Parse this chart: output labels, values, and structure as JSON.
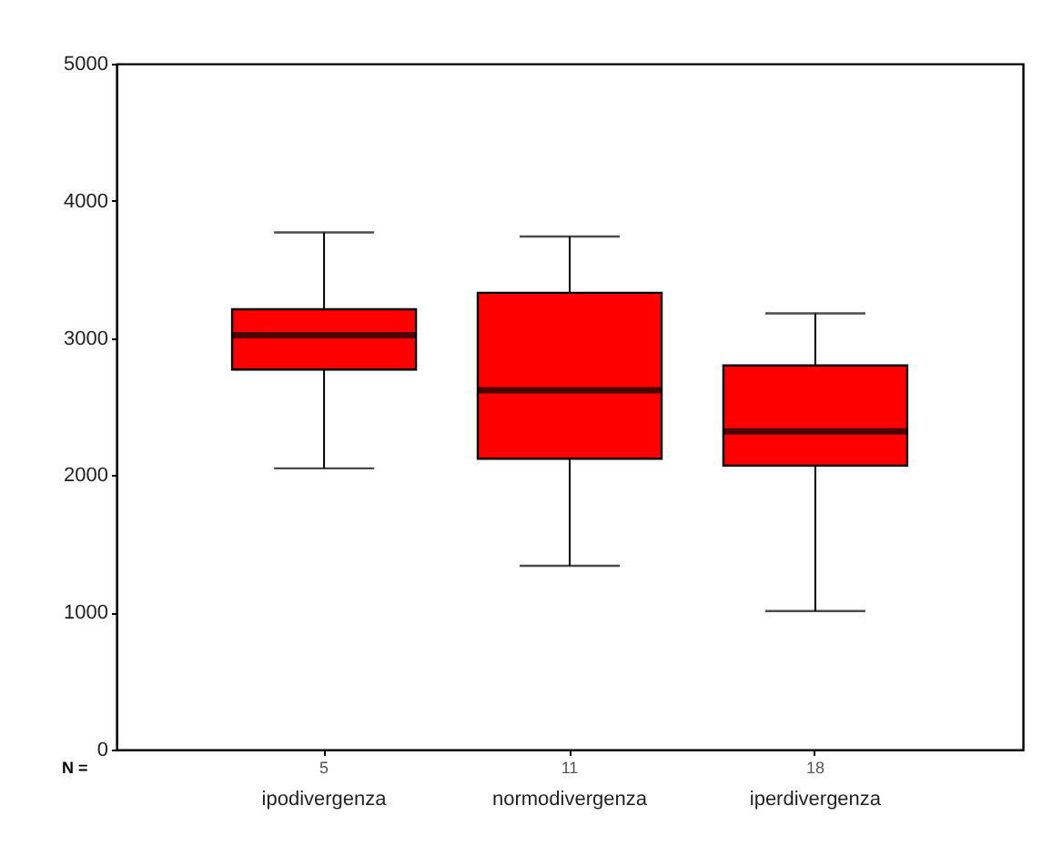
{
  "chart_data": {
    "type": "box",
    "categories": [
      "ipodivergenza",
      "normodivergenza",
      "iperdivergenza"
    ],
    "boxes": [
      {
        "low": 2050,
        "q1": 2770,
        "median": 3020,
        "q3": 3210,
        "high": 3770
      },
      {
        "low": 1340,
        "q1": 2120,
        "median": 2620,
        "q3": 3330,
        "high": 3740
      },
      {
        "low": 1010,
        "q1": 2070,
        "median": 2320,
        "q3": 2800,
        "high": 3180
      }
    ],
    "color": "#ff0000",
    "ylim": [
      0,
      5000
    ],
    "yticks": [
      0,
      1000,
      2000,
      3000,
      4000,
      5000
    ],
    "grid": false,
    "annotations": [
      "N =",
      "5",
      "11",
      "18"
    ]
  }
}
